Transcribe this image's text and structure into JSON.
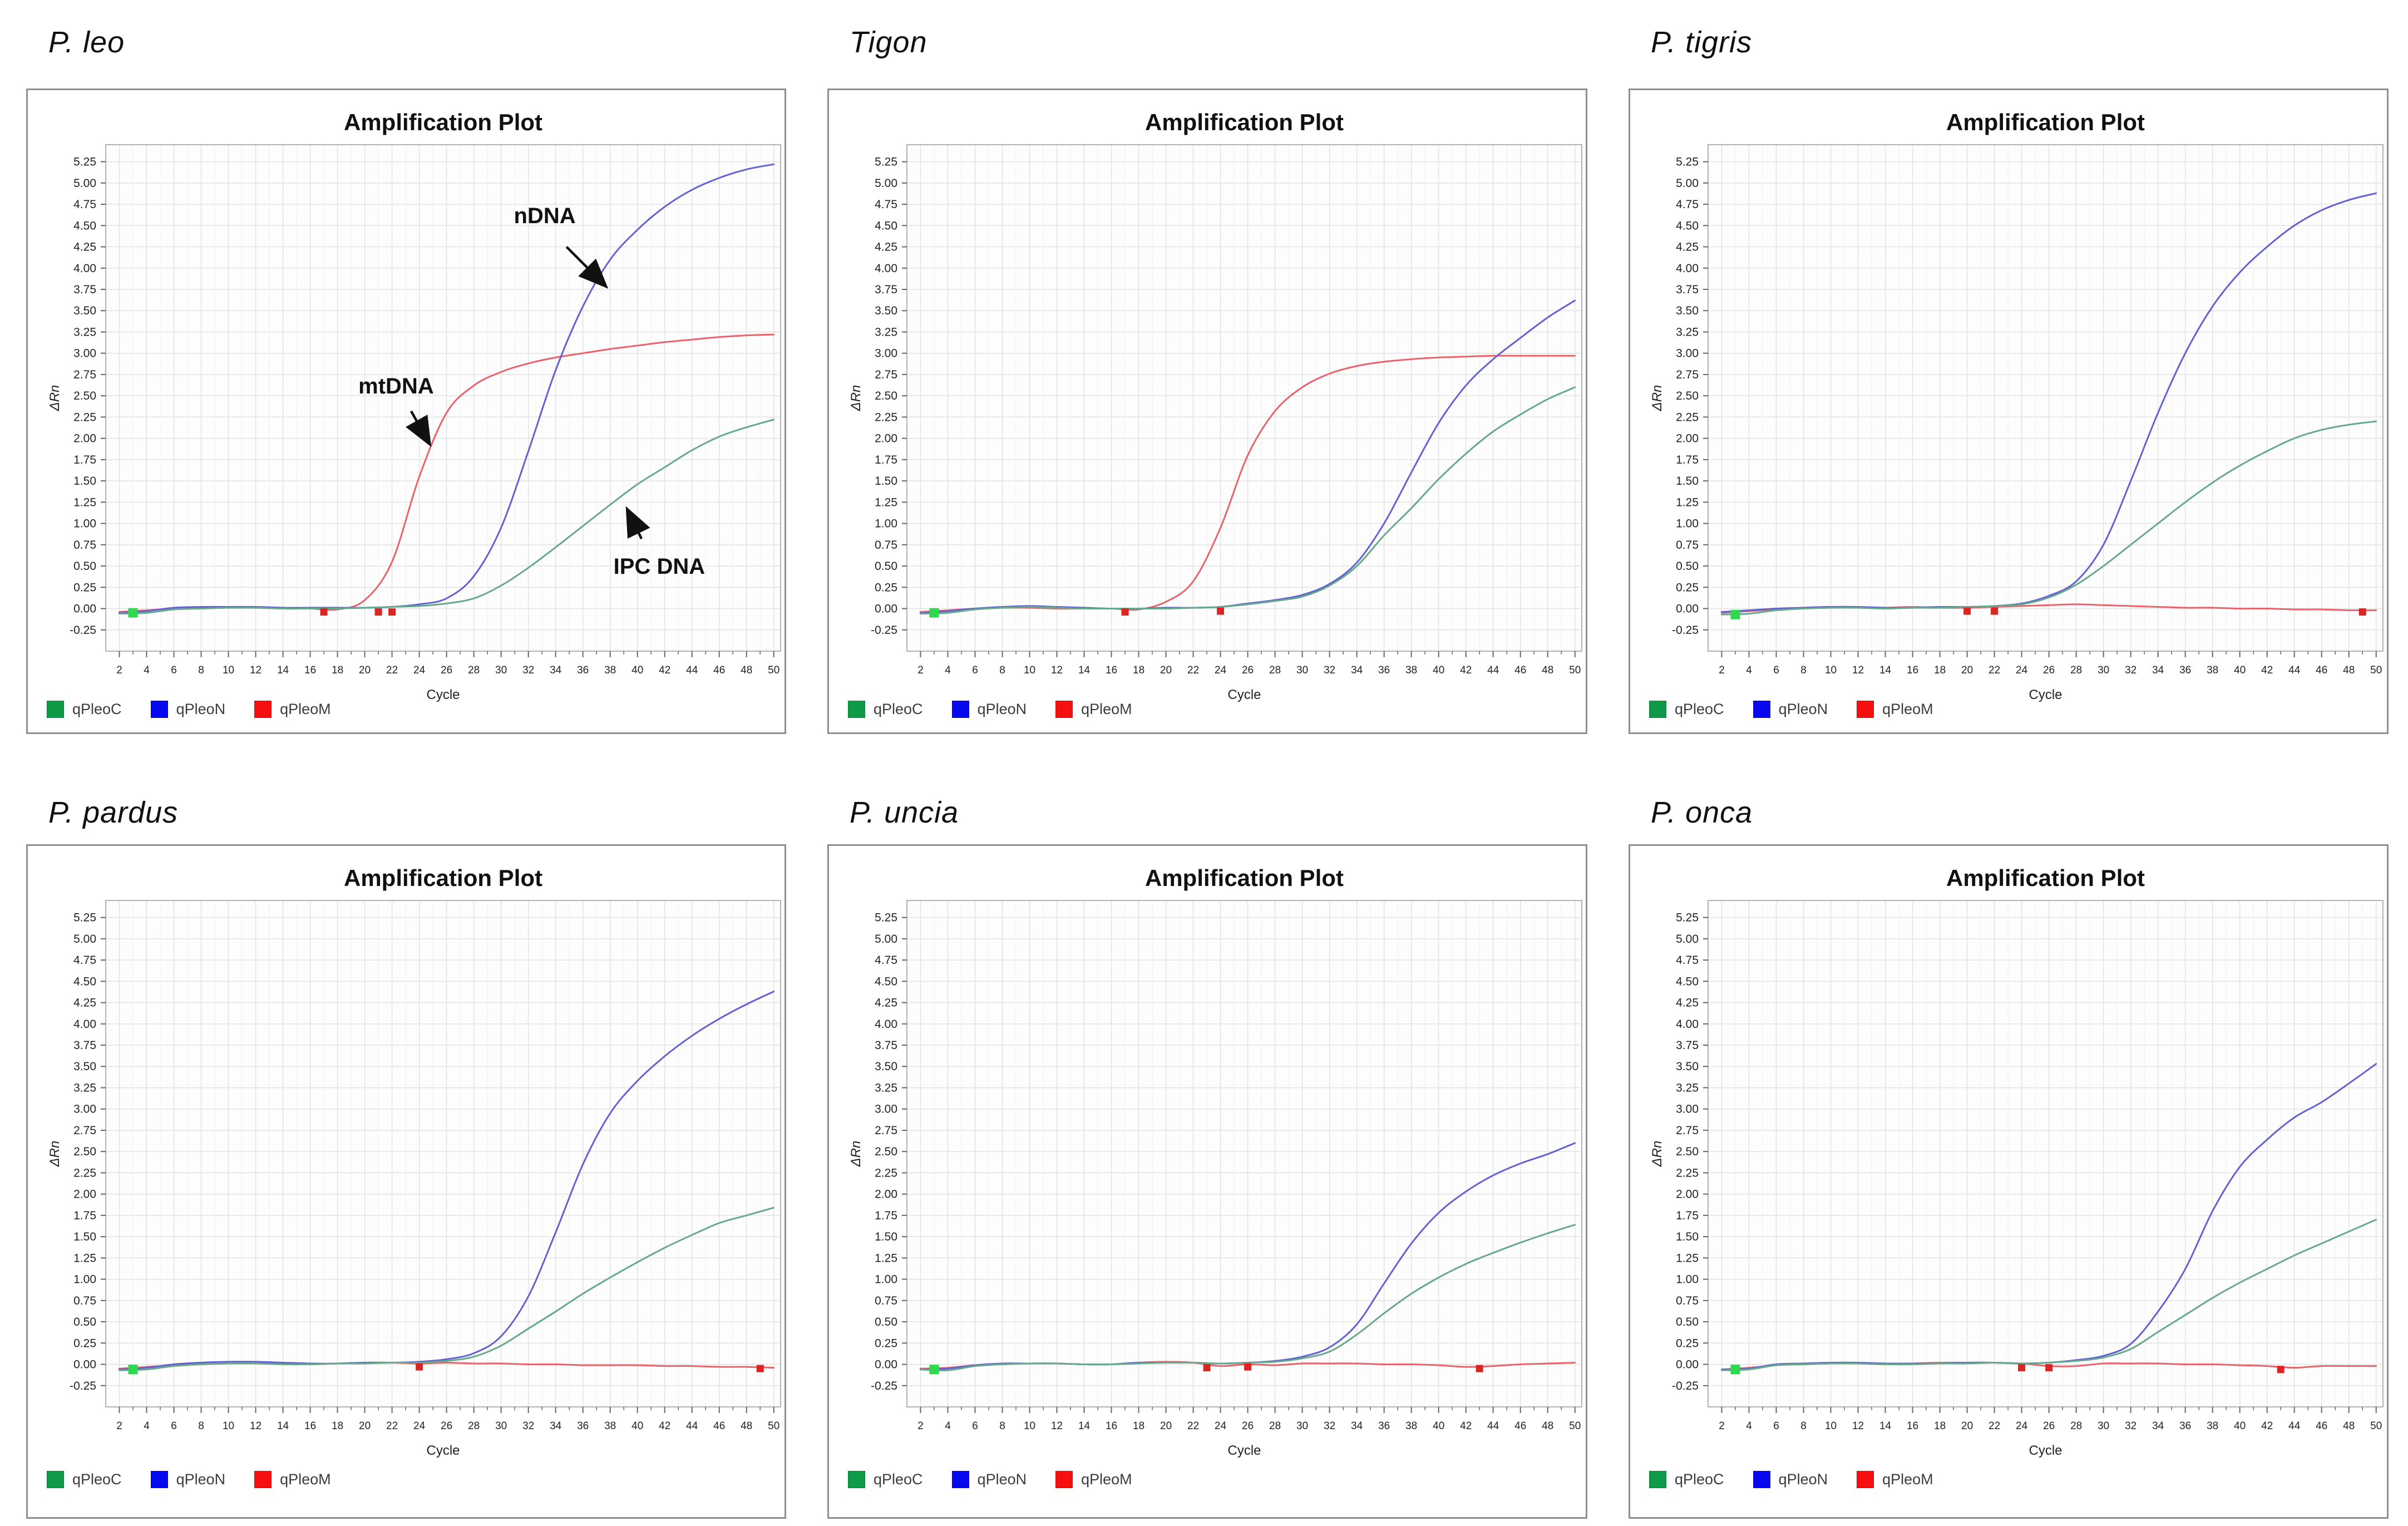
{
  "figure": {
    "panel_title": "Amplification Plot"
  },
  "colors": {
    "curve_green": "#66a98d",
    "curve_blue": "#6262d2",
    "curve_red": "#e8636b",
    "legend_green": "#0e9a47",
    "legend_blue": "#0808ee",
    "legend_red": "#f50f0f",
    "marker_green": "#2ed94e",
    "marker_red": "#dd2420",
    "grid_major": "#e2e2e2",
    "grid_minor": "#efefef",
    "plot_bg": "#fdfdfd",
    "plot_border": "#b3b3b3",
    "tick_color": "#666666",
    "tick_text": "#222222",
    "annotation": "#111111"
  },
  "legend": [
    {
      "label": "qPleoC",
      "color": "legend_green"
    },
    {
      "label": "qPleoN",
      "color": "legend_blue"
    },
    {
      "label": "qPleoM",
      "color": "legend_red"
    }
  ],
  "axis": {
    "x_label": "Cycle",
    "y_label": "ΔRn",
    "x_domain": [
      1,
      50.5
    ],
    "y_domain": [
      -0.5,
      5.45
    ],
    "x_ticks": [
      2,
      4,
      6,
      8,
      10,
      12,
      14,
      16,
      18,
      20,
      22,
      24,
      26,
      28,
      30,
      32,
      34,
      36,
      38,
      40,
      42,
      44,
      46,
      48,
      50
    ],
    "y_ticks": [
      -0.25,
      0.0,
      0.25,
      0.5,
      0.75,
      1.0,
      1.25,
      1.5,
      1.75,
      2.0,
      2.25,
      2.5,
      2.75,
      3.0,
      3.25,
      3.5,
      3.75,
      4.0,
      4.25,
      4.5,
      4.75,
      5.0,
      5.25
    ],
    "grid": true
  },
  "chart_data": [
    {
      "type": "line",
      "species_title": "P. leo",
      "plot_title": "Amplification Plot",
      "xlabel": "Cycle",
      "ylabel": "ΔRn",
      "ylim": [
        -0.5,
        5.45
      ],
      "x": [
        2,
        4,
        6,
        8,
        10,
        12,
        14,
        16,
        18,
        20,
        22,
        24,
        26,
        28,
        30,
        32,
        34,
        36,
        38,
        40,
        42,
        44,
        46,
        48,
        50
      ],
      "series": [
        {
          "name": "qPleoM",
          "color": "curve_red",
          "values": [
            -0.04,
            -0.02,
            0.0,
            0.01,
            0.01,
            0.01,
            0.0,
            0.0,
            -0.01,
            0.1,
            0.55,
            1.55,
            2.3,
            2.62,
            2.78,
            2.88,
            2.95,
            3.0,
            3.05,
            3.09,
            3.13,
            3.16,
            3.19,
            3.21,
            3.22
          ]
        },
        {
          "name": "qPleoN",
          "color": "curve_blue",
          "values": [
            -0.05,
            -0.03,
            0.01,
            0.02,
            0.02,
            0.02,
            0.01,
            0.01,
            0.01,
            0.01,
            0.02,
            0.05,
            0.12,
            0.38,
            0.95,
            1.85,
            2.8,
            3.55,
            4.1,
            4.45,
            4.72,
            4.92,
            5.06,
            5.16,
            5.22
          ]
        },
        {
          "name": "qPleoC",
          "color": "curve_green",
          "values": [
            -0.06,
            -0.05,
            -0.01,
            0.0,
            0.01,
            0.01,
            0.0,
            0.0,
            0.0,
            0.01,
            0.02,
            0.03,
            0.06,
            0.12,
            0.27,
            0.48,
            0.72,
            0.97,
            1.22,
            1.46,
            1.66,
            1.86,
            2.02,
            2.13,
            2.22
          ]
        }
      ],
      "markers": [
        {
          "x": 3,
          "y": -0.05,
          "color": "marker_green"
        },
        {
          "x": 17,
          "y": -0.04,
          "color": "marker_red"
        },
        {
          "x": 21,
          "y": -0.04,
          "color": "marker_red"
        },
        {
          "x": 22,
          "y": -0.04,
          "color": "marker_red"
        }
      ],
      "annotations": [
        {
          "text": "nDNA",
          "tx": 33.2,
          "ty": 4.62,
          "x1": 34.8,
          "y1": 4.25,
          "x2": 37.6,
          "y2": 3.8
        },
        {
          "text": "mtDNA",
          "tx": 22.3,
          "ty": 2.62,
          "x1": 23.4,
          "y1": 2.32,
          "x2": 24.7,
          "y2": 1.95
        },
        {
          "text": "IPC DNA",
          "tx": 41.6,
          "ty": 0.5,
          "x1": 40.3,
          "y1": 0.82,
          "x2": 39.3,
          "y2": 1.15
        }
      ]
    },
    {
      "type": "line",
      "species_title": "Tigon",
      "plot_title": "Amplification Plot",
      "xlabel": "Cycle",
      "ylabel": "ΔRn",
      "ylim": [
        -0.5,
        5.45
      ],
      "x": [
        2,
        4,
        6,
        8,
        10,
        12,
        14,
        16,
        18,
        20,
        22,
        24,
        26,
        28,
        30,
        32,
        34,
        36,
        38,
        40,
        42,
        44,
        46,
        48,
        50
      ],
      "series": [
        {
          "name": "qPleoM",
          "color": "curve_red",
          "values": [
            -0.04,
            -0.02,
            0.0,
            0.01,
            0.01,
            0.0,
            0.0,
            0.0,
            -0.01,
            0.08,
            0.32,
            0.95,
            1.8,
            2.32,
            2.6,
            2.76,
            2.85,
            2.9,
            2.93,
            2.95,
            2.96,
            2.97,
            2.97,
            2.97,
            2.97
          ]
        },
        {
          "name": "qPleoN",
          "color": "curve_blue",
          "values": [
            -0.05,
            -0.03,
            0.0,
            0.02,
            0.03,
            0.02,
            0.01,
            0.0,
            0.0,
            0.01,
            0.01,
            0.02,
            0.06,
            0.1,
            0.16,
            0.29,
            0.54,
            1.0,
            1.6,
            2.18,
            2.62,
            2.93,
            3.18,
            3.42,
            3.62
          ]
        },
        {
          "name": "qPleoC",
          "color": "curve_green",
          "values": [
            -0.06,
            -0.05,
            -0.01,
            0.01,
            0.02,
            0.01,
            0.0,
            0.0,
            0.0,
            0.0,
            0.01,
            0.02,
            0.05,
            0.09,
            0.14,
            0.27,
            0.5,
            0.86,
            1.18,
            1.52,
            1.82,
            2.08,
            2.28,
            2.46,
            2.6
          ]
        }
      ],
      "markers": [
        {
          "x": 3,
          "y": -0.05,
          "color": "marker_green"
        },
        {
          "x": 17,
          "y": -0.04,
          "color": "marker_red"
        },
        {
          "x": 24,
          "y": -0.03,
          "color": "marker_red"
        }
      ],
      "annotations": []
    },
    {
      "type": "line",
      "species_title": "P. tigris",
      "plot_title": "Amplification Plot",
      "xlabel": "Cycle",
      "ylabel": "ΔRn",
      "ylim": [
        -0.5,
        5.45
      ],
      "x": [
        2,
        4,
        6,
        8,
        10,
        12,
        14,
        16,
        18,
        20,
        22,
        24,
        26,
        28,
        30,
        32,
        34,
        36,
        38,
        40,
        42,
        44,
        46,
        48,
        50
      ],
      "series": [
        {
          "name": "qPleoM",
          "color": "curve_red",
          "values": [
            -0.05,
            -0.03,
            -0.01,
            0.01,
            0.02,
            0.01,
            0.01,
            0.02,
            0.01,
            0.01,
            0.02,
            0.03,
            0.04,
            0.05,
            0.04,
            0.03,
            0.02,
            0.01,
            0.01,
            0.0,
            0.0,
            -0.01,
            -0.01,
            -0.02,
            -0.02
          ]
        },
        {
          "name": "qPleoN",
          "color": "curve_blue",
          "values": [
            -0.04,
            -0.02,
            0.0,
            0.01,
            0.02,
            0.02,
            0.01,
            0.01,
            0.02,
            0.02,
            0.03,
            0.06,
            0.15,
            0.32,
            0.75,
            1.5,
            2.3,
            3.0,
            3.55,
            3.95,
            4.25,
            4.5,
            4.68,
            4.8,
            4.88
          ]
        },
        {
          "name": "qPleoC",
          "color": "curve_green",
          "values": [
            -0.07,
            -0.06,
            -0.02,
            0.0,
            0.01,
            0.01,
            0.0,
            0.01,
            0.01,
            0.02,
            0.03,
            0.05,
            0.13,
            0.28,
            0.5,
            0.75,
            1.0,
            1.25,
            1.48,
            1.68,
            1.85,
            2.0,
            2.1,
            2.16,
            2.2
          ]
        }
      ],
      "markers": [
        {
          "x": 3,
          "y": -0.07,
          "color": "marker_green"
        },
        {
          "x": 20,
          "y": -0.03,
          "color": "marker_red"
        },
        {
          "x": 22,
          "y": -0.03,
          "color": "marker_red"
        },
        {
          "x": 49,
          "y": -0.04,
          "color": "marker_red"
        }
      ],
      "annotations": []
    },
    {
      "type": "line",
      "species_title": "P. pardus",
      "plot_title": "Amplification Plot",
      "xlabel": "Cycle",
      "ylabel": "ΔRn",
      "ylim": [
        -0.5,
        5.45
      ],
      "x": [
        2,
        4,
        6,
        8,
        10,
        12,
        14,
        16,
        18,
        20,
        22,
        24,
        26,
        28,
        30,
        32,
        34,
        36,
        38,
        40,
        42,
        44,
        46,
        48,
        50
      ],
      "series": [
        {
          "name": "qPleoM",
          "color": "curve_red",
          "values": [
            -0.05,
            -0.03,
            -0.01,
            0.0,
            0.01,
            0.01,
            0.01,
            0.0,
            0.01,
            0.02,
            0.02,
            0.01,
            0.02,
            0.01,
            0.01,
            0.0,
            0.0,
            -0.01,
            -0.01,
            -0.01,
            -0.02,
            -0.02,
            -0.03,
            -0.03,
            -0.04
          ]
        },
        {
          "name": "qPleoN",
          "color": "curve_blue",
          "values": [
            -0.06,
            -0.04,
            0.0,
            0.02,
            0.03,
            0.03,
            0.02,
            0.01,
            0.01,
            0.02,
            0.02,
            0.03,
            0.06,
            0.13,
            0.33,
            0.8,
            1.55,
            2.35,
            2.95,
            3.33,
            3.62,
            3.86,
            4.06,
            4.23,
            4.38
          ]
        },
        {
          "name": "qPleoC",
          "color": "curve_green",
          "values": [
            -0.07,
            -0.06,
            -0.02,
            0.0,
            0.01,
            0.01,
            0.0,
            0.0,
            0.01,
            0.01,
            0.02,
            0.02,
            0.04,
            0.09,
            0.22,
            0.42,
            0.62,
            0.83,
            1.02,
            1.2,
            1.37,
            1.52,
            1.66,
            1.75,
            1.84
          ]
        }
      ],
      "markers": [
        {
          "x": 3,
          "y": -0.06,
          "color": "marker_green"
        },
        {
          "x": 24,
          "y": -0.03,
          "color": "marker_red"
        },
        {
          "x": 49,
          "y": -0.05,
          "color": "marker_red"
        }
      ],
      "annotations": []
    },
    {
      "type": "line",
      "species_title": "P. uncia",
      "plot_title": "Amplification Plot",
      "xlabel": "Cycle",
      "ylabel": "ΔRn",
      "ylim": [
        -0.5,
        5.45
      ],
      "x": [
        2,
        4,
        6,
        8,
        10,
        12,
        14,
        16,
        18,
        20,
        22,
        24,
        26,
        28,
        30,
        32,
        34,
        36,
        38,
        40,
        42,
        44,
        46,
        48,
        50
      ],
      "series": [
        {
          "name": "qPleoM",
          "color": "curve_red",
          "values": [
            -0.05,
            -0.04,
            -0.01,
            0.0,
            0.01,
            0.01,
            0.0,
            0.0,
            0.02,
            0.03,
            0.02,
            -0.02,
            0.0,
            -0.01,
            0.01,
            0.01,
            0.01,
            0.0,
            0.0,
            -0.01,
            -0.03,
            -0.02,
            0.0,
            0.01,
            0.02
          ]
        },
        {
          "name": "qPleoN",
          "color": "curve_blue",
          "values": [
            -0.06,
            -0.05,
            -0.01,
            0.01,
            0.01,
            0.01,
            0.0,
            0.0,
            0.02,
            0.02,
            0.02,
            0.01,
            0.02,
            0.04,
            0.09,
            0.2,
            0.47,
            0.95,
            1.42,
            1.78,
            2.03,
            2.22,
            2.36,
            2.47,
            2.6
          ]
        },
        {
          "name": "qPleoC",
          "color": "curve_green",
          "values": [
            -0.06,
            -0.07,
            -0.02,
            0.0,
            0.01,
            0.01,
            0.0,
            0.0,
            0.01,
            0.02,
            0.02,
            0.01,
            0.02,
            0.03,
            0.07,
            0.15,
            0.35,
            0.6,
            0.83,
            1.02,
            1.18,
            1.31,
            1.43,
            1.54,
            1.64
          ]
        }
      ],
      "markers": [
        {
          "x": 3,
          "y": -0.06,
          "color": "marker_green"
        },
        {
          "x": 23,
          "y": -0.04,
          "color": "marker_red"
        },
        {
          "x": 26,
          "y": -0.03,
          "color": "marker_red"
        },
        {
          "x": 43,
          "y": -0.05,
          "color": "marker_red"
        }
      ],
      "annotations": []
    },
    {
      "type": "line",
      "species_title": "P. onca",
      "plot_title": "Amplification Plot",
      "xlabel": "Cycle",
      "ylabel": "ΔRn",
      "ylim": [
        -0.5,
        5.45
      ],
      "x": [
        2,
        4,
        6,
        8,
        10,
        12,
        14,
        16,
        18,
        20,
        22,
        24,
        26,
        28,
        30,
        32,
        34,
        36,
        38,
        40,
        42,
        44,
        46,
        48,
        50
      ],
      "series": [
        {
          "name": "qPleoM",
          "color": "curve_red",
          "values": [
            -0.06,
            -0.04,
            -0.01,
            0.0,
            0.01,
            0.01,
            0.0,
            0.01,
            0.02,
            0.02,
            0.02,
            0.01,
            -0.02,
            -0.02,
            0.01,
            0.01,
            0.01,
            0.0,
            0.0,
            -0.01,
            -0.02,
            -0.04,
            -0.02,
            -0.02,
            -0.02
          ]
        },
        {
          "name": "qPleoN",
          "color": "curve_blue",
          "values": [
            -0.06,
            -0.05,
            0.0,
            0.01,
            0.02,
            0.02,
            0.01,
            0.01,
            0.01,
            0.02,
            0.02,
            0.01,
            0.02,
            0.05,
            0.1,
            0.24,
            0.62,
            1.12,
            1.8,
            2.32,
            2.64,
            2.9,
            3.08,
            3.3,
            3.53
          ]
        },
        {
          "name": "qPleoC",
          "color": "curve_green",
          "values": [
            -0.07,
            -0.06,
            -0.01,
            0.0,
            0.01,
            0.01,
            0.0,
            0.0,
            0.01,
            0.01,
            0.02,
            0.01,
            0.02,
            0.04,
            0.08,
            0.18,
            0.38,
            0.58,
            0.78,
            0.96,
            1.12,
            1.28,
            1.42,
            1.56,
            1.7
          ]
        }
      ],
      "markers": [
        {
          "x": 3,
          "y": -0.06,
          "color": "marker_green"
        },
        {
          "x": 24,
          "y": -0.04,
          "color": "marker_red"
        },
        {
          "x": 26,
          "y": -0.04,
          "color": "marker_red"
        },
        {
          "x": 43,
          "y": -0.06,
          "color": "marker_red"
        }
      ],
      "annotations": []
    }
  ]
}
